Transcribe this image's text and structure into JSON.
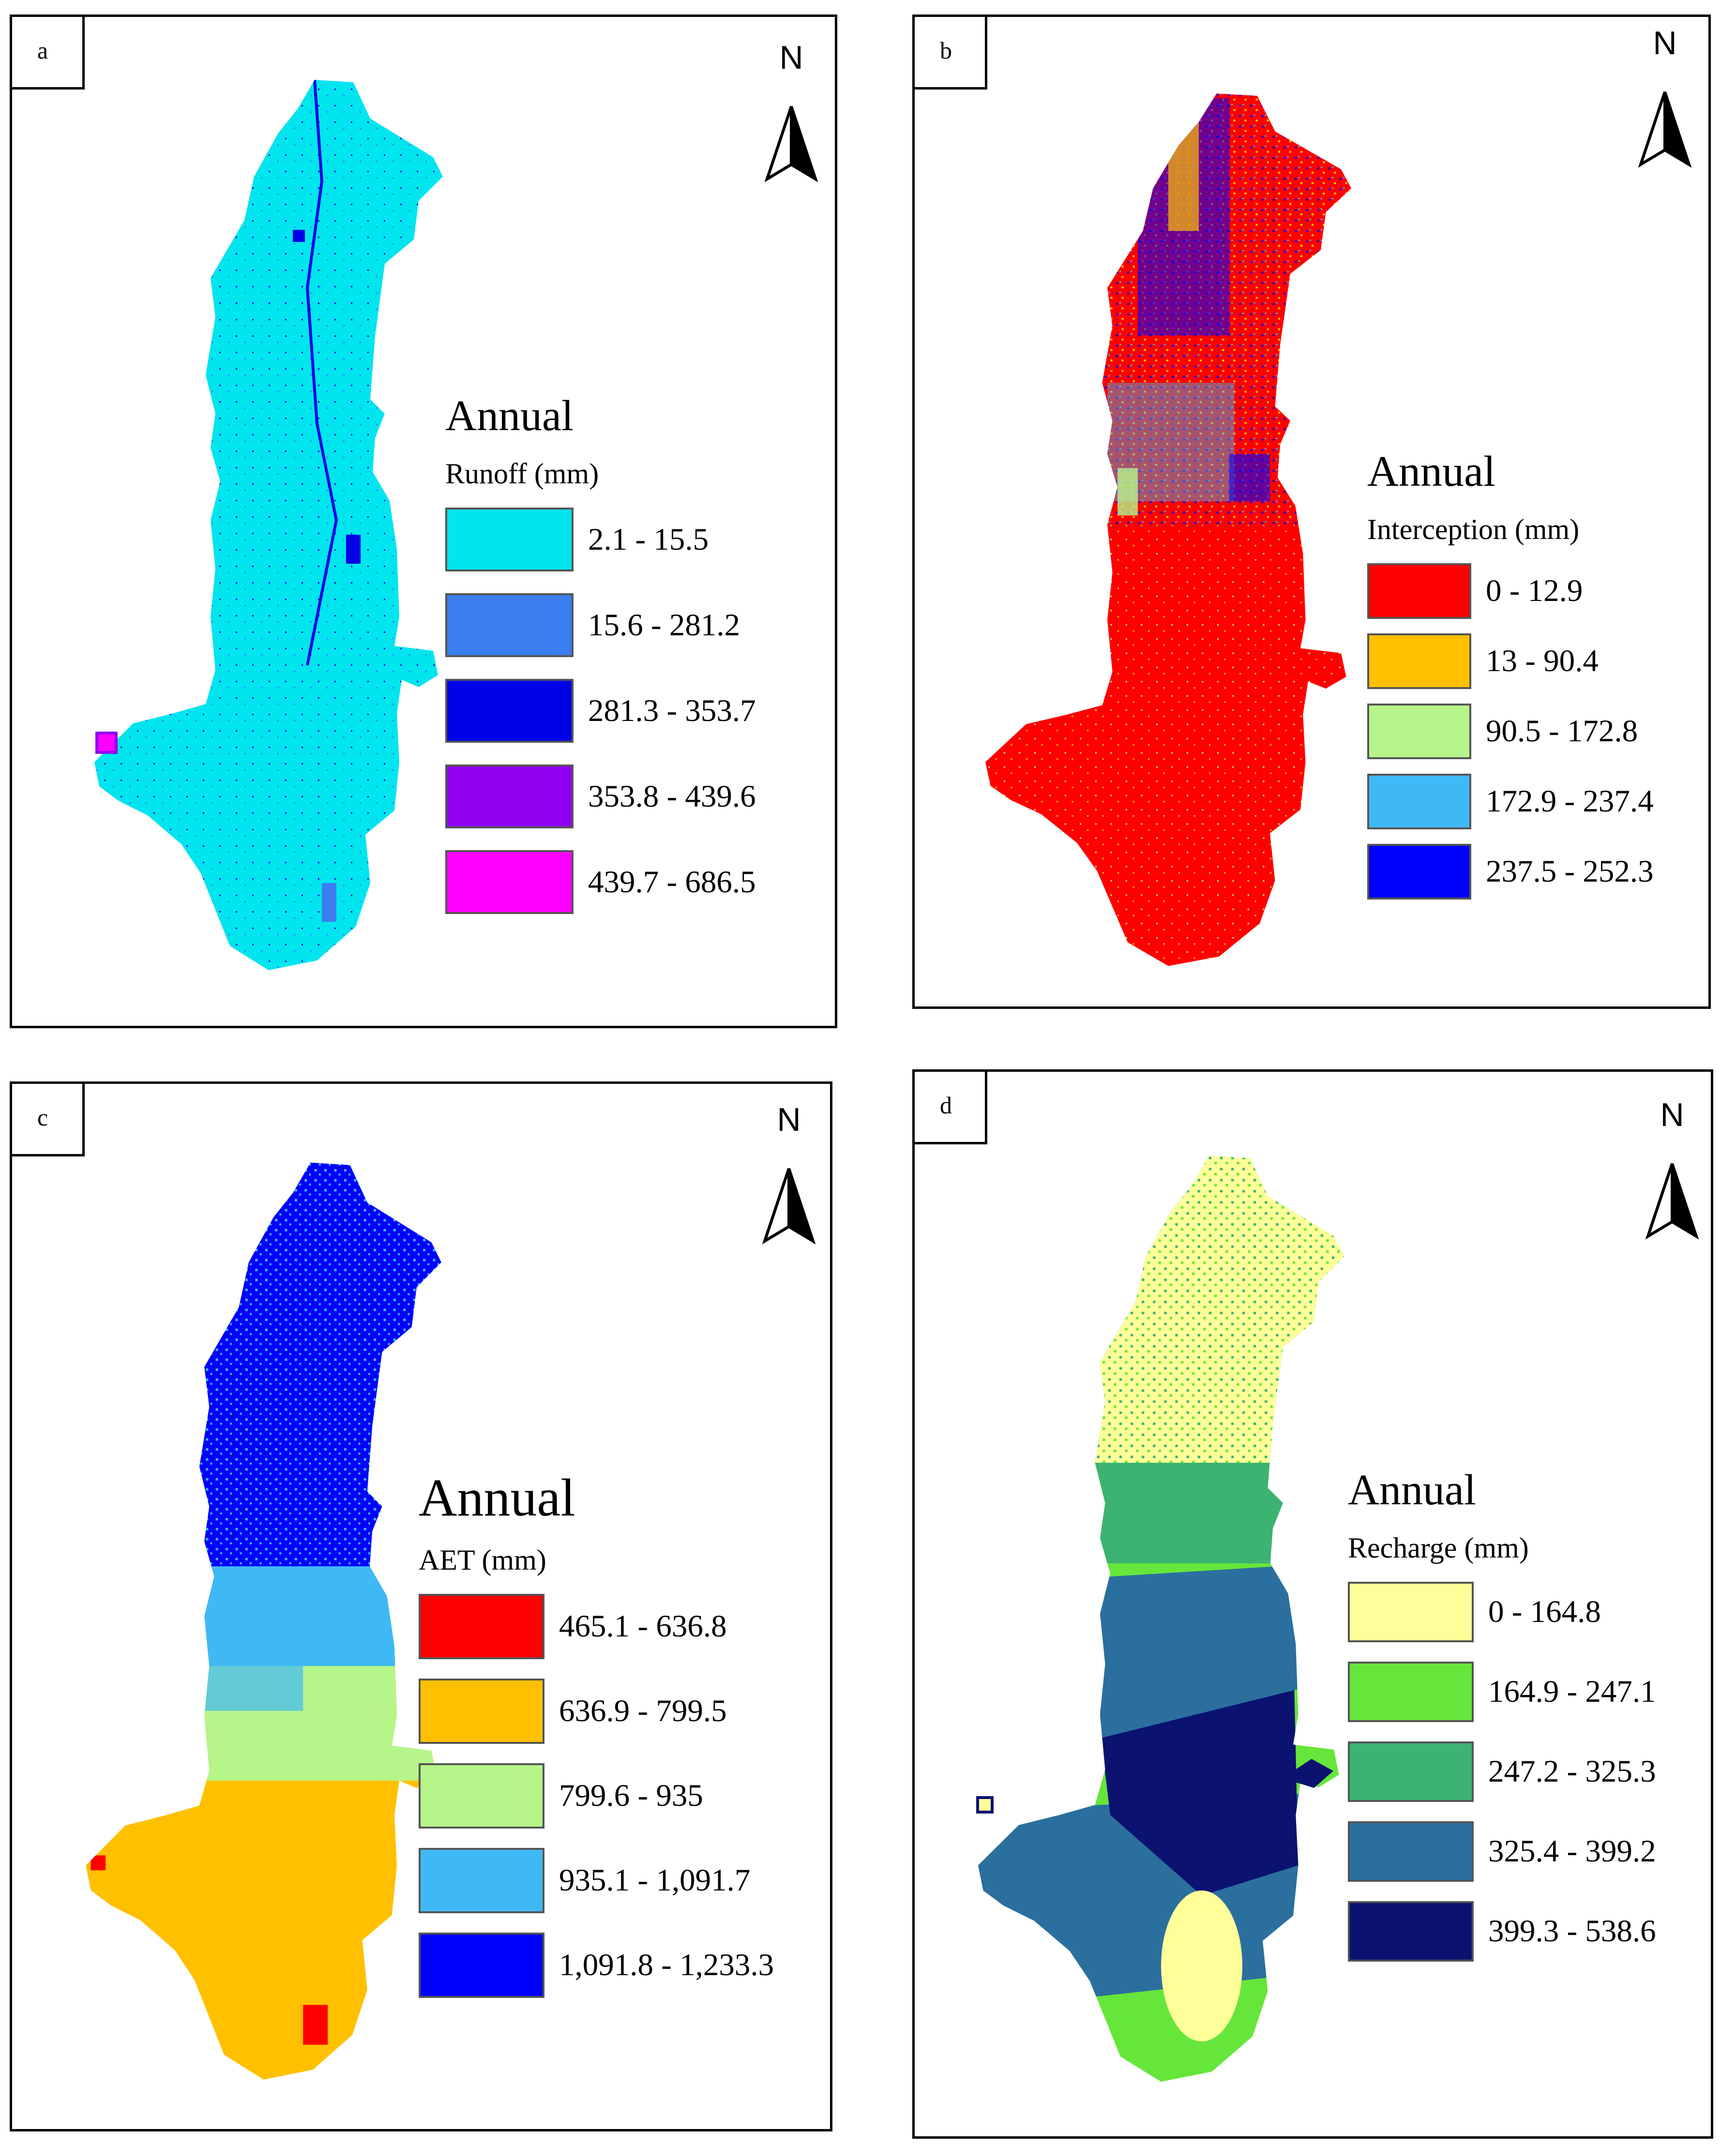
{
  "figure": {
    "panels": [
      {
        "id": "a",
        "label": "a",
        "legend_title": "Annual",
        "variable": "Runoff (mm)",
        "classes": [
          {
            "range": "2.1 - 15.5",
            "color": "#00e5ee"
          },
          {
            "range": "15.6 - 281.2",
            "color": "#3a7ef0"
          },
          {
            "range": "281.3 - 353.7",
            "color": "#0000e6"
          },
          {
            "range": "353.8 - 439.6",
            "color": "#9000f0"
          },
          {
            "range": "439.7 - 686.5",
            "color": "#ff00ff"
          }
        ],
        "north_label": "N"
      },
      {
        "id": "b",
        "label": "b",
        "legend_title": "Annual",
        "variable": "Interception (mm)",
        "classes": [
          {
            "range": "0 - 12.9",
            "color": "#ff0000"
          },
          {
            "range": "13 - 90.4",
            "color": "#ffc000"
          },
          {
            "range": "90.5 - 172.8",
            "color": "#b5f58a"
          },
          {
            "range": "172.9 - 237.4",
            "color": "#3fb9f5"
          },
          {
            "range": "237.5 - 252.3",
            "color": "#0000ff"
          }
        ],
        "north_label": "N"
      },
      {
        "id": "c",
        "label": "c",
        "legend_title": "Annual",
        "variable": "AET (mm)",
        "classes": [
          {
            "range": "465.1 - 636.8",
            "color": "#ff0000"
          },
          {
            "range": "636.9 - 799.5",
            "color": "#ffc000"
          },
          {
            "range": "799.6 - 935",
            "color": "#b5f58a"
          },
          {
            "range": "935.1 - 1,091.7",
            "color": "#3fb9f5"
          },
          {
            "range": "1,091.8 - 1,233.3",
            "color": "#0000ff"
          }
        ],
        "north_label": "N"
      },
      {
        "id": "d",
        "label": "d",
        "legend_title": "Annual",
        "variable": "Recharge (mm)",
        "classes": [
          {
            "range": "0 - 164.8",
            "color": "#ffff99"
          },
          {
            "range": "164.9 - 247.1",
            "color": "#66e63a"
          },
          {
            "range": "247.2 - 325.3",
            "color": "#3cb371"
          },
          {
            "range": "325.4 - 399.2",
            "color": "#2a6f9e"
          },
          {
            "range": "399.3 - 538.6",
            "color": "#0b1270"
          }
        ],
        "north_label": "N"
      }
    ]
  }
}
